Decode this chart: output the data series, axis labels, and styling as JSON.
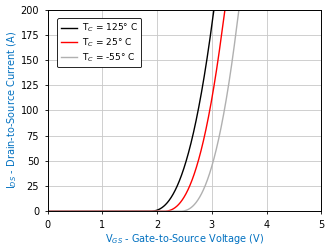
{
  "title": "",
  "xlabel": "V$_{GS}$ - Gate-to-Source Voltage (V)",
  "ylabel": "I$_{DS}$ - Drain-to-Source Current (A)",
  "xlim": [
    0,
    5
  ],
  "ylim": [
    0,
    200
  ],
  "xticks": [
    0,
    1,
    2,
    3,
    4,
    5
  ],
  "yticks": [
    0,
    25,
    50,
    75,
    100,
    125,
    150,
    175,
    200
  ],
  "curves": [
    {
      "label": "T$_C$ = 125° C",
      "color": "black",
      "vth": 1.85,
      "k": 130.0,
      "n": 2.5
    },
    {
      "label": "T$_C$ = 25° C",
      "color": "red",
      "vth": 2.1,
      "k": 145.0,
      "n": 2.5
    },
    {
      "label": "T$_C$ = -55° C",
      "color": "#b0b0b0",
      "vth": 2.4,
      "k": 160.0,
      "n": 2.5
    }
  ],
  "legend_loc": "upper left",
  "grid_color": "#c8c8c8",
  "bg_color": "#ffffff",
  "figsize": [
    3.3,
    2.52
  ],
  "dpi": 100
}
